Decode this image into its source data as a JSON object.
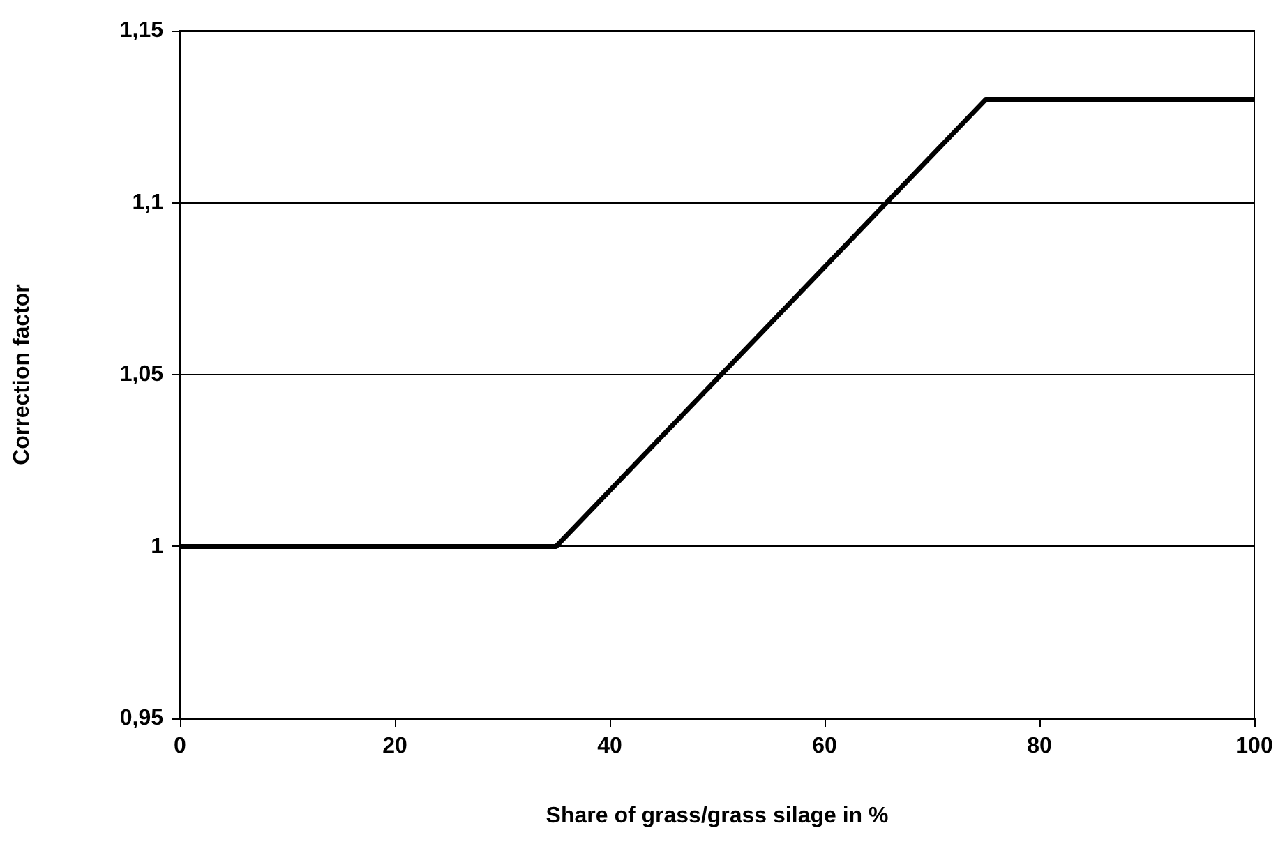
{
  "chart_data": {
    "type": "line",
    "xlabel": "Share of grass/grass silage in %",
    "ylabel": "Correction factor",
    "series": [
      {
        "color": "#000000",
        "x": [
          0,
          35,
          75,
          100
        ],
        "values": [
          1,
          1,
          1.13,
          1.13
        ]
      }
    ],
    "xlim": [
      0,
      100
    ],
    "xticks": [
      0,
      20,
      40,
      60,
      80,
      100
    ],
    "ylim": [
      0.95,
      1.15
    ],
    "yticks": [
      {
        "value": 0.95,
        "label": "0,95"
      },
      1,
      {
        "value": 1.05,
        "label": "1,05"
      },
      {
        "value": 1.1,
        "label": "1,1"
      },
      {
        "value": 1.15,
        "label": "1,15"
      }
    ],
    "grid": "y",
    "marker": "none",
    "line_style": "solid"
  }
}
